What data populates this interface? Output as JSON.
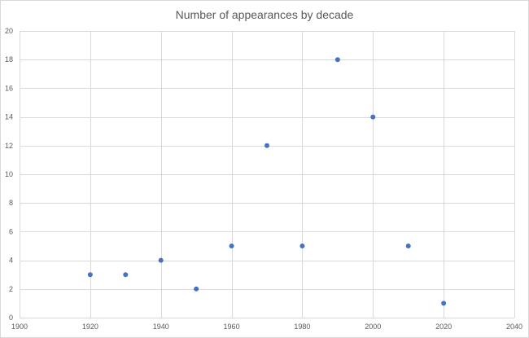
{
  "chart_data": {
    "type": "scatter",
    "title": "Number of appearances by decade",
    "xlabel": "",
    "ylabel": "",
    "xlim": [
      1900,
      2040
    ],
    "ylim": [
      0,
      20
    ],
    "x_ticks": [
      1900,
      1920,
      1940,
      1960,
      1980,
      2000,
      2020,
      2040
    ],
    "y_ticks": [
      0,
      2,
      4,
      6,
      8,
      10,
      12,
      14,
      16,
      18,
      20
    ],
    "grid": true,
    "legend": "none",
    "series": [
      {
        "color": "#4472c4",
        "points": [
          {
            "x": 1920,
            "y": 3
          },
          {
            "x": 1930,
            "y": 3
          },
          {
            "x": 1940,
            "y": 4
          },
          {
            "x": 1950,
            "y": 2
          },
          {
            "x": 1960,
            "y": 5
          },
          {
            "x": 1970,
            "y": 12
          },
          {
            "x": 1980,
            "y": 5
          },
          {
            "x": 1990,
            "y": 18
          },
          {
            "x": 2000,
            "y": 14
          },
          {
            "x": 2010,
            "y": 5
          },
          {
            "x": 2020,
            "y": 1
          }
        ]
      }
    ]
  },
  "colors": {
    "grid": "#d9d9d9",
    "axis_text": "#595959",
    "marker": "#4472c4"
  }
}
